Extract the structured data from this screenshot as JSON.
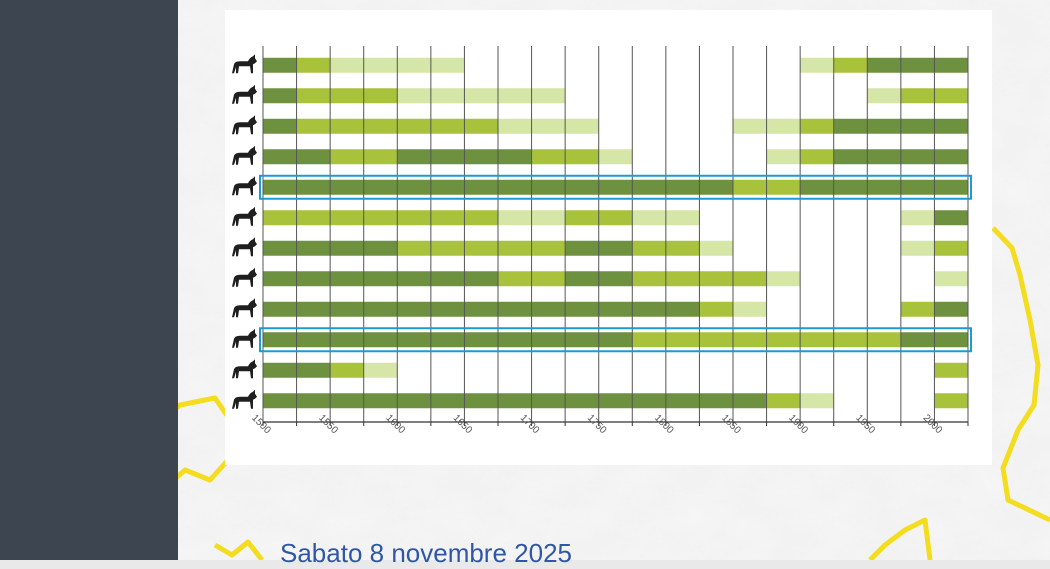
{
  "date_text": "Sabato 8 novembre 2025",
  "colors": {
    "dark": "#6e9140",
    "medium": "#a8c23c",
    "light": "#d5e6a6",
    "highlight": "#1b9ad6",
    "side_panel": "#3d4550",
    "border_line": "#f4dc1e"
  },
  "chart_data": {
    "type": "heatmap",
    "title": "",
    "xlabel": "",
    "ylabel": "",
    "x_ticks": [
      "1500",
      "1550",
      "1600",
      "1650",
      "1700",
      "1750",
      "1800",
      "1850",
      "1900",
      "1950",
      "2000"
    ],
    "xlim": [
      1500,
      2025
    ],
    "bin_width_years": 25,
    "levels": [
      "dark",
      "medium",
      "light",
      "absent"
    ],
    "grid": true,
    "rows": [
      {
        "icon": "ibex-icon",
        "highlighted": false,
        "segments": [
          [
            1500,
            1525,
            "dark"
          ],
          [
            1525,
            1550,
            "medium"
          ],
          [
            1550,
            1650,
            "light"
          ],
          [
            1900,
            1925,
            "light"
          ],
          [
            1925,
            1950,
            "medium"
          ],
          [
            1950,
            2025,
            "dark"
          ]
        ]
      },
      {
        "icon": "wild-boar-icon",
        "highlighted": false,
        "segments": [
          [
            1500,
            1525,
            "dark"
          ],
          [
            1525,
            1600,
            "medium"
          ],
          [
            1600,
            1725,
            "light"
          ],
          [
            1950,
            1975,
            "light"
          ],
          [
            1975,
            2025,
            "medium"
          ]
        ]
      },
      {
        "icon": "roe-deer-icon",
        "highlighted": false,
        "segments": [
          [
            1500,
            1525,
            "dark"
          ],
          [
            1525,
            1675,
            "medium"
          ],
          [
            1675,
            1750,
            "light"
          ],
          [
            1850,
            1900,
            "light"
          ],
          [
            1900,
            1925,
            "medium"
          ],
          [
            1925,
            2025,
            "dark"
          ]
        ]
      },
      {
        "icon": "red-deer-icon",
        "highlighted": false,
        "segments": [
          [
            1500,
            1550,
            "dark"
          ],
          [
            1550,
            1600,
            "medium"
          ],
          [
            1600,
            1700,
            "dark"
          ],
          [
            1700,
            1750,
            "medium"
          ],
          [
            1750,
            1775,
            "light"
          ],
          [
            1875,
            1900,
            "light"
          ],
          [
            1900,
            1925,
            "medium"
          ],
          [
            1925,
            2025,
            "dark"
          ]
        ]
      },
      {
        "icon": "chamois-icon",
        "highlighted": true,
        "segments": [
          [
            1500,
            1850,
            "dark"
          ],
          [
            1850,
            1900,
            "medium"
          ],
          [
            1900,
            2025,
            "dark"
          ]
        ]
      },
      {
        "icon": "wolf-icon",
        "highlighted": false,
        "segments": [
          [
            1500,
            1675,
            "medium"
          ],
          [
            1675,
            1725,
            "light"
          ],
          [
            1725,
            1775,
            "medium"
          ],
          [
            1775,
            1825,
            "light"
          ],
          [
            1975,
            2000,
            "light"
          ],
          [
            2000,
            2025,
            "dark"
          ]
        ]
      },
      {
        "icon": "lynx-icon",
        "highlighted": false,
        "segments": [
          [
            1500,
            1600,
            "dark"
          ],
          [
            1600,
            1725,
            "medium"
          ],
          [
            1725,
            1775,
            "dark"
          ],
          [
            1775,
            1825,
            "medium"
          ],
          [
            1825,
            1850,
            "light"
          ],
          [
            1975,
            2000,
            "light"
          ],
          [
            2000,
            2025,
            "medium"
          ]
        ]
      },
      {
        "icon": "bear-icon",
        "highlighted": false,
        "segments": [
          [
            1500,
            1675,
            "dark"
          ],
          [
            1675,
            1725,
            "medium"
          ],
          [
            1725,
            1775,
            "dark"
          ],
          [
            1775,
            1875,
            "medium"
          ],
          [
            1875,
            1900,
            "light"
          ],
          [
            2000,
            2025,
            "light"
          ]
        ]
      },
      {
        "icon": "bird-of-prey-icon",
        "highlighted": false,
        "segments": [
          [
            1500,
            1825,
            "dark"
          ],
          [
            1825,
            1850,
            "medium"
          ],
          [
            1850,
            1875,
            "light"
          ],
          [
            1975,
            2000,
            "medium"
          ],
          [
            2000,
            2025,
            "dark"
          ]
        ]
      },
      {
        "icon": "vulture-icon",
        "highlighted": true,
        "segments": [
          [
            1500,
            1775,
            "dark"
          ],
          [
            1775,
            1975,
            "medium"
          ],
          [
            1975,
            2025,
            "dark"
          ]
        ]
      },
      {
        "icon": "beaver-icon",
        "highlighted": false,
        "segments": [
          [
            1500,
            1550,
            "dark"
          ],
          [
            1550,
            1575,
            "medium"
          ],
          [
            1575,
            1600,
            "light"
          ],
          [
            2000,
            2025,
            "medium"
          ]
        ]
      },
      {
        "icon": "otter-icon",
        "highlighted": false,
        "segments": [
          [
            1500,
            1875,
            "dark"
          ],
          [
            1875,
            1900,
            "medium"
          ],
          [
            1900,
            1925,
            "light"
          ],
          [
            2000,
            2025,
            "medium"
          ]
        ]
      }
    ]
  }
}
